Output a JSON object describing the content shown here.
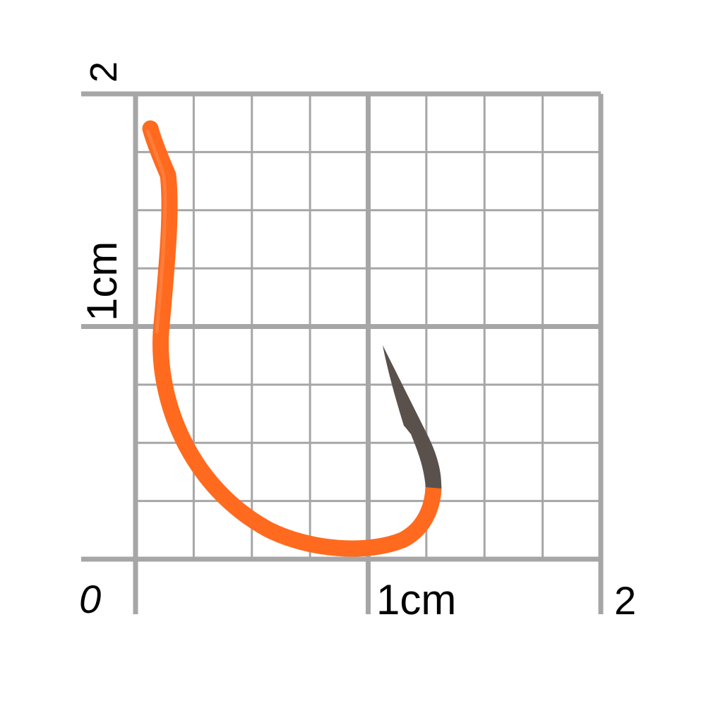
{
  "scale": {
    "unit_label_x": "1cm",
    "unit_label_y": "1cm",
    "origin_label": "0",
    "max_label_x": "2",
    "max_label_y": "2"
  },
  "colors": {
    "grid": "#a6a6a6",
    "hook_coating": "#ff6a1f",
    "hook_point": "#5a514c",
    "background": "#ffffff"
  },
  "subject": "fishing-hook"
}
